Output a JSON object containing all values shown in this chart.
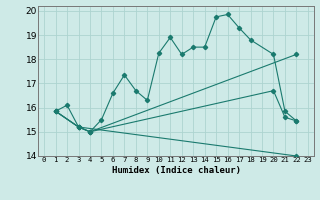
{
  "xlabel": "Humidex (Indice chaleur)",
  "background_color": "#ceeae7",
  "grid_color": "#add4d0",
  "line_color": "#1a7a6e",
  "xlim": [
    -0.5,
    23.5
  ],
  "ylim": [
    14,
    20.2
  ],
  "yticks": [
    14,
    15,
    16,
    17,
    18,
    19,
    20
  ],
  "xticks": [
    0,
    1,
    2,
    3,
    4,
    5,
    6,
    7,
    8,
    9,
    10,
    11,
    12,
    13,
    14,
    15,
    16,
    17,
    18,
    19,
    20,
    21,
    22,
    23
  ],
  "series": [
    {
      "x": [
        1,
        2,
        3,
        4,
        5,
        6,
        7,
        8,
        9,
        10,
        11,
        12,
        13,
        14,
        15,
        16,
        17,
        18,
        20,
        21,
        22
      ],
      "y": [
        15.85,
        16.1,
        15.2,
        15.0,
        15.5,
        16.6,
        17.35,
        16.7,
        16.3,
        18.25,
        18.9,
        18.2,
        18.5,
        18.5,
        19.75,
        19.85,
        19.3,
        18.8,
        18.2,
        15.85,
        15.45
      ]
    },
    {
      "x": [
        1,
        3,
        22
      ],
      "y": [
        15.85,
        15.2,
        14.0
      ]
    },
    {
      "x": [
        1,
        3,
        4,
        22
      ],
      "y": [
        15.85,
        15.2,
        15.0,
        18.2
      ]
    },
    {
      "x": [
        1,
        3,
        4,
        20,
        21,
        22
      ],
      "y": [
        15.85,
        15.2,
        15.0,
        16.7,
        15.6,
        15.45
      ]
    }
  ]
}
